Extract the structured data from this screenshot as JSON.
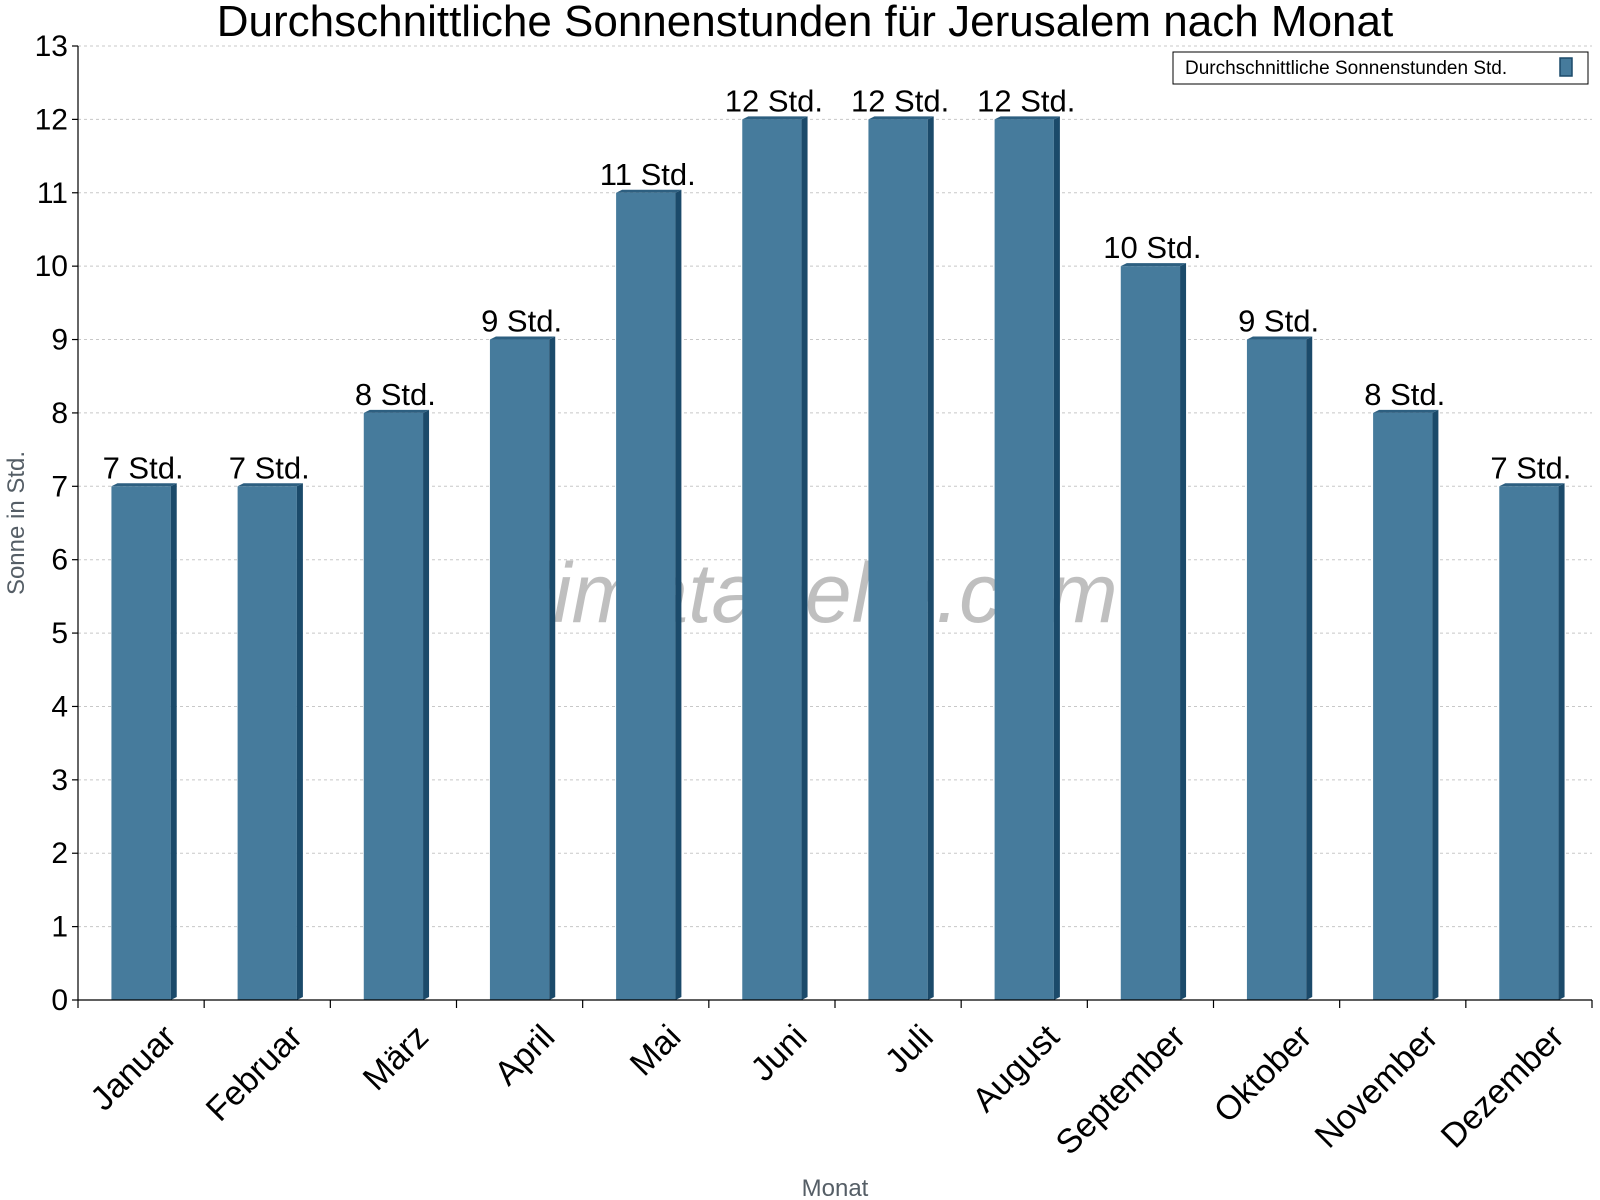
{
  "chart_data": {
    "type": "bar",
    "title": "Durchschnittliche Sonnenstunden für Jerusalem nach Monat",
    "xlabel": "Monat",
    "ylabel": "Sonne in Std.",
    "ylim": [
      0,
      13
    ],
    "yticks": [
      "0",
      "1",
      "2",
      "3",
      "4",
      "5",
      "6",
      "7",
      "8",
      "9",
      "10",
      "11",
      "12",
      "13"
    ],
    "grid": true,
    "legend_position": "top-right",
    "categories": [
      "Januar",
      "Februar",
      "März",
      "April",
      "Mai",
      "Juni",
      "Juli",
      "August",
      "September",
      "Oktober",
      "November",
      "Dezember"
    ],
    "series": [
      {
        "name": "Durchschnittliche Sonnenstunden Std.",
        "values": [
          7,
          7,
          8,
          9,
          11,
          12,
          12,
          12,
          10,
          9,
          8,
          7
        ],
        "labels": [
          "7 Std.",
          "7 Std.",
          "8 Std.",
          "9 Std.",
          "11 Std.",
          "12 Std.",
          "12 Std.",
          "12 Std.",
          "10 Std.",
          "9 Std.",
          "8 Std.",
          "7 Std."
        ]
      }
    ],
    "colors": {
      "bar": "#467b9c",
      "bar_side": "#1b4a6a",
      "bar_top": "#2d5f80"
    }
  },
  "watermark": "klimatabelle.com"
}
